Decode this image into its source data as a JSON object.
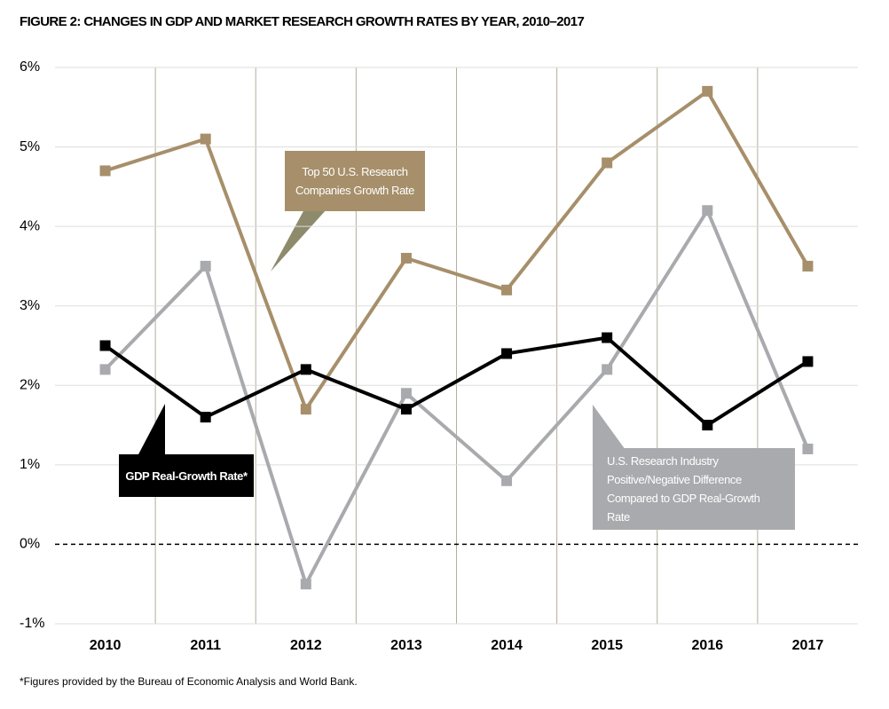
{
  "chart_data": {
    "type": "line",
    "title": "FIGURE 2: CHANGES IN GDP AND MARKET RESEARCH GROWTH RATES BY YEAR, 2010–2017",
    "categories": [
      "2010",
      "2011",
      "2012",
      "2013",
      "2014",
      "2015",
      "2016",
      "2017"
    ],
    "series": [
      {
        "name": "Top 50 U.S. Research Companies Growth Rate",
        "color": "#a68f6a",
        "values": [
          4.7,
          5.1,
          1.7,
          3.6,
          3.2,
          4.8,
          5.7,
          3.5
        ]
      },
      {
        "name": "U.S. Research Industry Positive/Negative Difference Compared to GDP Real-Growth Rate",
        "color": "#a9aaad",
        "values": [
          2.2,
          3.5,
          -0.5,
          1.9,
          0.8,
          2.2,
          4.2,
          1.2
        ]
      },
      {
        "name": "GDP Real-Growth Rate*",
        "color": "#000000",
        "values": [
          2.5,
          1.6,
          2.2,
          1.7,
          2.4,
          2.6,
          1.5,
          2.3
        ]
      }
    ],
    "ylim": [
      -1,
      6
    ],
    "yticks": [
      {
        "value": -1,
        "label": "-1%"
      },
      {
        "value": 0,
        "label": "0%"
      },
      {
        "value": 1,
        "label": "1%"
      },
      {
        "value": 2,
        "label": "2%"
      },
      {
        "value": 3,
        "label": "3%"
      },
      {
        "value": 4,
        "label": "4%"
      },
      {
        "value": 5,
        "label": "5%"
      },
      {
        "value": 6,
        "label": "6%"
      }
    ],
    "grid": true,
    "footnote": "*Figures provided by the Bureau of Economic Analysis and World Bank."
  }
}
